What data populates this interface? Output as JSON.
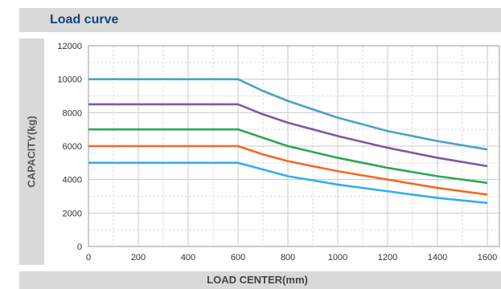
{
  "header": {
    "title": "Load curve"
  },
  "chart_data": {
    "type": "line",
    "title": "Load curve",
    "xlabel": "LOAD CENTER(mm)",
    "ylabel": "CAPACITY(kg)",
    "xlim": [
      0,
      1600
    ],
    "ylim": [
      0,
      12000
    ],
    "x_ticks": [
      "0",
      "200",
      "400",
      "600",
      "800",
      "1000",
      "1200",
      "1400",
      "1600"
    ],
    "y_ticks": [
      "0",
      "2000",
      "4000",
      "6000",
      "8000",
      "10000",
      "12000"
    ],
    "grid": true,
    "series": [
      {
        "color": "#4ba3bf",
        "x": [
          0,
          600,
          700,
          800,
          1000,
          1200,
          1400,
          1600
        ],
        "y": [
          10000,
          10000,
          9300,
          8700,
          7700,
          6900,
          6300,
          5800
        ]
      },
      {
        "color": "#7b5aa6",
        "x": [
          0,
          600,
          700,
          800,
          1000,
          1200,
          1400,
          1600
        ],
        "y": [
          8500,
          8500,
          7900,
          7400,
          6600,
          5900,
          5300,
          4800
        ]
      },
      {
        "color": "#2aa857",
        "x": [
          0,
          600,
          700,
          800,
          1000,
          1200,
          1400,
          1600
        ],
        "y": [
          7000,
          7000,
          6500,
          6000,
          5300,
          4700,
          4200,
          3800
        ]
      },
      {
        "color": "#f26a24",
        "x": [
          0,
          600,
          700,
          800,
          1000,
          1200,
          1400,
          1600
        ],
        "y": [
          6000,
          6000,
          5500,
          5100,
          4500,
          4000,
          3500,
          3100
        ]
      },
      {
        "color": "#35aee8",
        "x": [
          0,
          600,
          700,
          800,
          1000,
          1200,
          1400,
          1600
        ],
        "y": [
          5000,
          5000,
          4600,
          4200,
          3700,
          3300,
          2900,
          2600
        ]
      }
    ]
  }
}
